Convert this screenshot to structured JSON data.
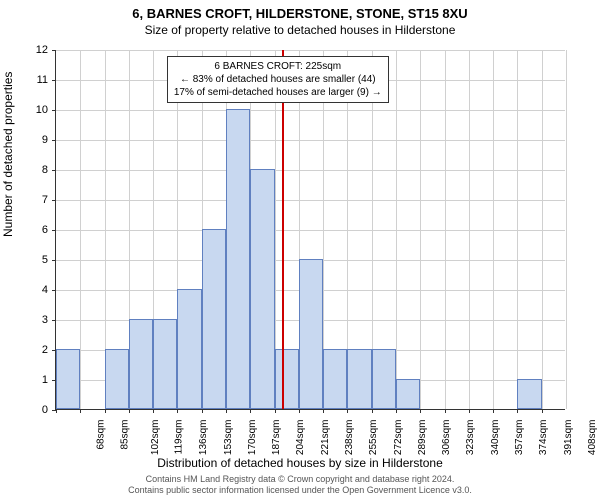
{
  "title": {
    "main": "6, BARNES CROFT, HILDERSTONE, STONE, ST15 8XU",
    "sub": "Size of property relative to detached houses in Hilderstone"
  },
  "chart": {
    "type": "histogram",
    "ylabel": "Number of detached properties",
    "xlabel": "Distribution of detached houses by size in Hilderstone",
    "ymax": 12,
    "ytick_step": 1,
    "yticks": [
      0,
      1,
      2,
      3,
      4,
      5,
      6,
      7,
      8,
      9,
      10,
      11,
      12
    ],
    "x_categories": [
      "68sqm",
      "85sqm",
      "102sqm",
      "119sqm",
      "136sqm",
      "153sqm",
      "170sqm",
      "187sqm",
      "204sqm",
      "221sqm",
      "238sqm",
      "255sqm",
      "272sqm",
      "289sqm",
      "306sqm",
      "323sqm",
      "340sqm",
      "357sqm",
      "374sqm",
      "391sqm",
      "408sqm"
    ],
    "values": [
      2,
      0,
      2,
      3,
      3,
      4,
      6,
      10,
      8,
      2,
      5,
      2,
      2,
      2,
      1,
      0,
      0,
      0,
      0,
      1,
      0
    ],
    "bar_fill": "#c8d8f0",
    "bar_border": "#6080c0",
    "grid_color": "#d0d0d0",
    "background_color": "#ffffff",
    "marker": {
      "x_index_after": 9,
      "color": "#cc0000",
      "lines": [
        "6 BARNES CROFT: 225sqm",
        "← 83% of detached houses are smaller (44)",
        "17% of semi-detached houses are larger (9) →"
      ]
    }
  },
  "footer": {
    "line1": "Contains HM Land Registry data © Crown copyright and database right 2024.",
    "line2": "Contains public sector information licensed under the Open Government Licence v3.0."
  }
}
